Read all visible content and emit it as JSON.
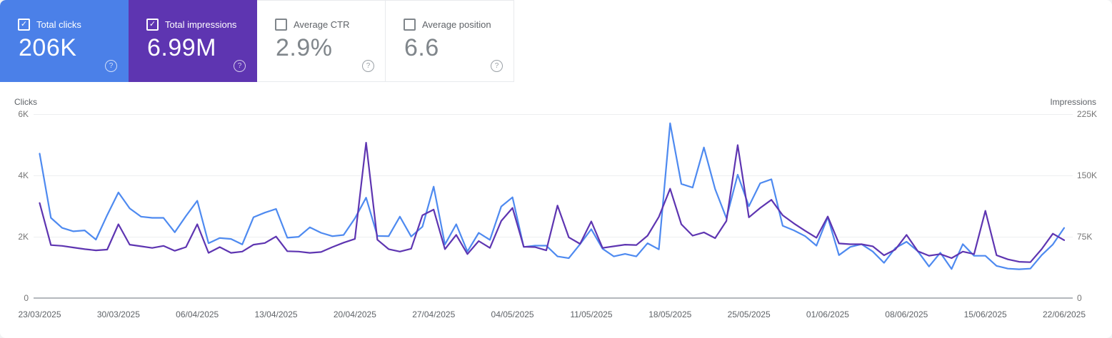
{
  "icons": {
    "help": "?",
    "check": "✓"
  },
  "cards": [
    {
      "label": "Total clicks",
      "value": "206K",
      "checked": true,
      "check_glyph": "✓",
      "color": "#4b80e8"
    },
    {
      "label": "Total impressions",
      "value": "6.99M",
      "checked": true,
      "check_glyph": "✓",
      "color": "#5e35b1"
    },
    {
      "label": "Average CTR",
      "value": "2.9%",
      "checked": false,
      "check_glyph": ""
    },
    {
      "label": "Average position",
      "value": "6.6",
      "checked": false,
      "check_glyph": ""
    }
  ],
  "chart_data": {
    "type": "line",
    "title": "",
    "grid": "horizontal",
    "left_axis": {
      "title": "Clicks",
      "ticks": [
        "6K",
        "4K",
        "2K",
        "0"
      ],
      "max": 6000
    },
    "right_axis": {
      "title": "Impressions",
      "ticks": [
        "225K",
        "150K",
        "75K",
        "0"
      ],
      "max": 225000
    },
    "x_tick_labels": [
      "23/03/2025",
      "30/03/2025",
      "06/04/2025",
      "13/04/2025",
      "20/04/2025",
      "27/04/2025",
      "04/05/2025",
      "11/05/2025",
      "18/05/2025",
      "25/05/2025",
      "01/06/2025",
      "08/06/2025",
      "15/06/2025",
      "22/06/2025"
    ],
    "x_start_date": "23/03/2025",
    "x_end_date": "22/06/2025",
    "x_interval": "daily",
    "series": [
      {
        "name": "Total clicks",
        "axis": "left",
        "color": "#4e8af0",
        "values": [
          4710,
          2610,
          2280,
          2170,
          2200,
          1900,
          2700,
          3440,
          2920,
          2650,
          2610,
          2610,
          2140,
          2670,
          3170,
          1780,
          1950,
          1920,
          1740,
          2630,
          2780,
          2900,
          1960,
          1990,
          2300,
          2120,
          2010,
          2050,
          2590,
          3270,
          2020,
          2010,
          2650,
          2000,
          2320,
          3630,
          1740,
          2400,
          1510,
          2120,
          1890,
          2980,
          3280,
          1660,
          1700,
          1700,
          1350,
          1290,
          1750,
          2240,
          1600,
          1350,
          1430,
          1350,
          1780,
          1580,
          5700,
          3720,
          3600,
          4910,
          3550,
          2600,
          4020,
          2990,
          3740,
          3870,
          2350,
          2200,
          2010,
          1700,
          2630,
          1390,
          1660,
          1750,
          1510,
          1140,
          1620,
          1830,
          1520,
          1020,
          1470,
          940,
          1750,
          1370,
          1370,
          1040,
          950,
          930,
          950,
          1390,
          1740,
          2280
        ]
      },
      {
        "name": "Total impressions",
        "axis": "right",
        "color": "#5e35b1",
        "values": [
          116000,
          64500,
          63500,
          61500,
          59500,
          58000,
          59000,
          90000,
          65000,
          63000,
          61000,
          63500,
          57500,
          62000,
          90000,
          55000,
          62000,
          55000,
          56500,
          65000,
          67000,
          75000,
          57000,
          56500,
          55000,
          56000,
          62000,
          67500,
          72000,
          190000,
          71000,
          59500,
          56500,
          60000,
          101000,
          108000,
          59500,
          77000,
          53500,
          69500,
          61000,
          94000,
          110000,
          62500,
          62000,
          58000,
          113000,
          74000,
          66000,
          93500,
          61000,
          63000,
          65000,
          64500,
          76000,
          99000,
          133500,
          90000,
          76000,
          80000,
          73000,
          94000,
          187000,
          98500,
          110000,
          120000,
          101000,
          91000,
          82000,
          73500,
          99500,
          66500,
          65500,
          65500,
          63000,
          52000,
          59000,
          77000,
          57000,
          51500,
          53500,
          48500,
          56500,
          53500,
          106500,
          52000,
          47000,
          44000,
          43500,
          59500,
          78500,
          70500
        ]
      }
    ]
  }
}
